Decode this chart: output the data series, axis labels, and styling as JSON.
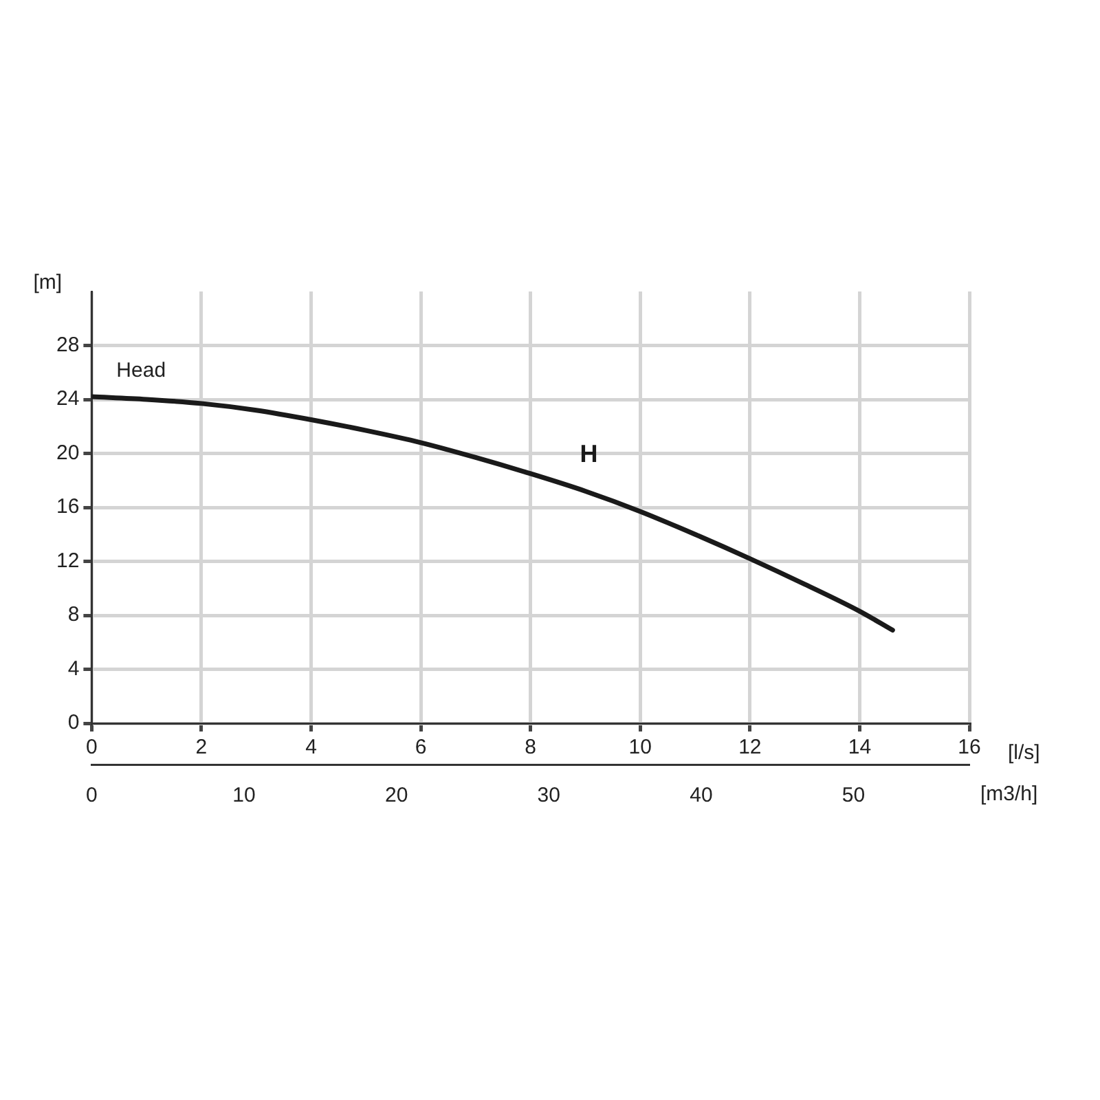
{
  "chart_data": {
    "type": "line",
    "ylabel": "[m]",
    "xlabel": "[l/s]",
    "x2label": "[m3/h]",
    "annotations": [
      "Head"
    ],
    "series": [
      {
        "name": "H",
        "color": "#1a1a1a",
        "x": [
          0,
          1,
          2,
          3,
          4,
          5,
          6,
          7,
          8,
          9,
          10,
          11,
          12,
          13,
          14,
          14.6
        ],
        "values": [
          24.2,
          24.0,
          23.7,
          23.2,
          22.5,
          21.7,
          20.8,
          19.7,
          18.5,
          17.2,
          15.7,
          14.0,
          12.2,
          10.3,
          8.3,
          6.9
        ]
      }
    ],
    "xlim": [
      0,
      16
    ],
    "xticks": [
      0,
      2,
      4,
      6,
      8,
      10,
      12,
      14,
      16
    ],
    "ylim": [
      0,
      32
    ],
    "yticks": [
      0,
      4,
      8,
      12,
      16,
      20,
      24,
      28
    ],
    "x2lim": [
      0,
      57.6
    ],
    "x2ticks": [
      0,
      10,
      20,
      30,
      40,
      50
    ],
    "grid": true,
    "legend": false,
    "marker": "none",
    "line_style": "solid"
  }
}
